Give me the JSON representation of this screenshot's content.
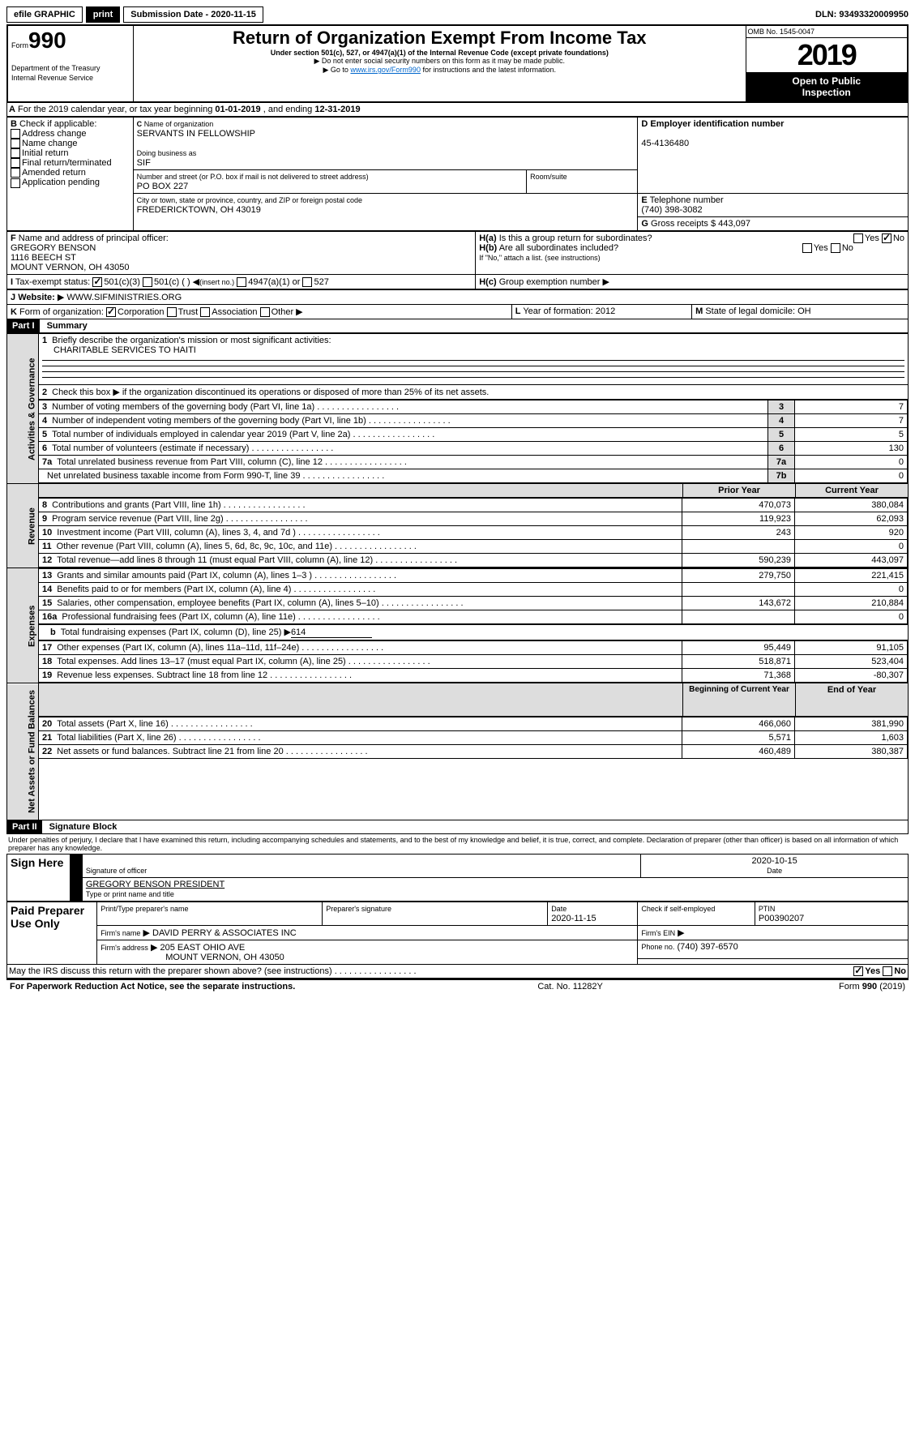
{
  "topbar": {
    "efile": "efile GRAPHIC",
    "print": "print",
    "subdate_lbl": "Submission Date - 2020-11-15",
    "dln": "DLN: 93493320009950"
  },
  "header": {
    "form": "990",
    "form_prefix": "Form",
    "title": "Return of Organization Exempt From Income Tax",
    "subtitle": "Under section 501(c), 527, or 4947(a)(1) of the Internal Revenue Code (except private foundations)",
    "note1": "Do not enter social security numbers on this form as it may be made public.",
    "note2_pre": "Go to ",
    "note2_link": "www.irs.gov/Form990",
    "note2_post": " for instructions and the latest information.",
    "dept": "Department of the Treasury",
    "irs": "Internal Revenue Service",
    "omb": "OMB No. 1545-0047",
    "year": "2019",
    "open": "Open to Public",
    "inspection": "Inspection"
  },
  "a_line": {
    "pre": "For the 2019 calendar year, or tax year beginning ",
    "begin": "01-01-2019",
    "mid": " , and ending ",
    "end": "12-31-2019"
  },
  "b": {
    "lbl": "Check if applicable:",
    "opts": [
      "Address change",
      "Name change",
      "Initial return",
      "Final return/terminated",
      "Amended return",
      "Application pending"
    ]
  },
  "c": {
    "lbl": "Name of organization",
    "name": "SERVANTS IN FELLOWSHIP",
    "dba_lbl": "Doing business as",
    "dba": "SIF",
    "addr_lbl": "Number and street (or P.O. box if mail is not delivered to street address)",
    "room_lbl": "Room/suite",
    "addr": "PO BOX 227",
    "city_lbl": "City or town, state or province, country, and ZIP or foreign postal code",
    "city": "FREDERICKTOWN, OH  43019"
  },
  "d": {
    "lbl": "Employer identification number",
    "ein": "45-4136480"
  },
  "e": {
    "lbl": "Telephone number",
    "phone": "(740) 398-3082"
  },
  "g": {
    "lbl": "Gross receipts $",
    "amt": "443,097"
  },
  "f": {
    "lbl": "Name and address of principal officer:",
    "name": "GREGORY BENSON",
    "addr1": "1116 BEECH ST",
    "addr2": "MOUNT VERNON, OH  43050"
  },
  "h": {
    "a": "Is this a group return for subordinates?",
    "b": "Are all subordinates included?",
    "c": "Group exemption number",
    "no_note": "If \"No,\" attach a list. (see instructions)",
    "yes": "Yes",
    "no": "No"
  },
  "tax_status": {
    "lbl": "Tax-exempt status:",
    "o1": "501(c)(3)",
    "o2": "501(c) (  )",
    "ins": "(insert no.)",
    "o3": "4947(a)(1) or",
    "o4": "527"
  },
  "j": {
    "lbl": "Website:",
    "val": "WWW.SIFMINISTRIES.ORG"
  },
  "k": {
    "lbl": "Form of organization:",
    "o1": "Corporation",
    "o2": "Trust",
    "o3": "Association",
    "o4": "Other"
  },
  "l": {
    "lbl": "Year of formation:",
    "val": "2012"
  },
  "m": {
    "lbl": "State of legal domicile:",
    "val": "OH"
  },
  "part1": {
    "hdr": "Part I",
    "title": "Summary"
  },
  "gov": {
    "tab": "Activities & Governance",
    "l1": "Briefly describe the organization's mission or most significant activities:",
    "mission": "CHARITABLE SERVICES TO HAITI",
    "l2": "Check this box ▶       if the organization discontinued its operations or disposed of more than 25% of its net assets.",
    "rows": [
      {
        "n": "3",
        "t": "Number of voting members of the governing body (Part VI, line 1a)",
        "c": "3",
        "v": "7"
      },
      {
        "n": "4",
        "t": "Number of independent voting members of the governing body (Part VI, line 1b)",
        "c": "4",
        "v": "7"
      },
      {
        "n": "5",
        "t": "Total number of individuals employed in calendar year 2019 (Part V, line 2a)",
        "c": "5",
        "v": "5"
      },
      {
        "n": "6",
        "t": "Total number of volunteers (estimate if necessary)",
        "c": "6",
        "v": "130"
      },
      {
        "n": "7a",
        "t": "Total unrelated business revenue from Part VIII, column (C), line 12",
        "c": "7a",
        "v": "0"
      },
      {
        "n": "",
        "t": "Net unrelated business taxable income from Form 990-T, line 39",
        "c": "7b",
        "v": "0"
      }
    ]
  },
  "rev": {
    "tab": "Revenue",
    "prior": "Prior Year",
    "current": "Current Year",
    "rows": [
      {
        "n": "8",
        "t": "Contributions and grants (Part VIII, line 1h)",
        "p": "470,073",
        "c": "380,084"
      },
      {
        "n": "9",
        "t": "Program service revenue (Part VIII, line 2g)",
        "p": "119,923",
        "c": "62,093"
      },
      {
        "n": "10",
        "t": "Investment income (Part VIII, column (A), lines 3, 4, and 7d )",
        "p": "243",
        "c": "920"
      },
      {
        "n": "11",
        "t": "Other revenue (Part VIII, column (A), lines 5, 6d, 8c, 9c, 10c, and 11e)",
        "p": "",
        "c": "0"
      },
      {
        "n": "12",
        "t": "Total revenue—add lines 8 through 11 (must equal Part VIII, column (A), line 12)",
        "p": "590,239",
        "c": "443,097"
      }
    ]
  },
  "exp": {
    "tab": "Expenses",
    "rows": [
      {
        "n": "13",
        "t": "Grants and similar amounts paid (Part IX, column (A), lines 1–3 )",
        "p": "279,750",
        "c": "221,415"
      },
      {
        "n": "14",
        "t": "Benefits paid to or for members (Part IX, column (A), line 4)",
        "p": "",
        "c": "0"
      },
      {
        "n": "15",
        "t": "Salaries, other compensation, employee benefits (Part IX, column (A), lines 5–10)",
        "p": "143,672",
        "c": "210,884"
      },
      {
        "n": "16a",
        "t": "Professional fundraising fees (Part IX, column (A), line 11e)",
        "p": "",
        "c": "0"
      }
    ],
    "b": "Total fundraising expenses (Part IX, column (D), line 25) ▶",
    "b_val": "614",
    "rows2": [
      {
        "n": "17",
        "t": "Other expenses (Part IX, column (A), lines 11a–11d, 11f–24e)",
        "p": "95,449",
        "c": "91,105"
      },
      {
        "n": "18",
        "t": "Total expenses. Add lines 13–17 (must equal Part IX, column (A), line 25)",
        "p": "518,871",
        "c": "523,404"
      },
      {
        "n": "19",
        "t": "Revenue less expenses. Subtract line 18 from line 12",
        "p": "71,368",
        "c": "-80,307"
      }
    ]
  },
  "net": {
    "tab": "Net Assets or Fund Balances",
    "begin": "Beginning of Current Year",
    "end": "End of Year",
    "rows": [
      {
        "n": "20",
        "t": "Total assets (Part X, line 16)",
        "p": "466,060",
        "c": "381,990"
      },
      {
        "n": "21",
        "t": "Total liabilities (Part X, line 26)",
        "p": "5,571",
        "c": "1,603"
      },
      {
        "n": "22",
        "t": "Net assets or fund balances. Subtract line 21 from line 20",
        "p": "460,489",
        "c": "380,387"
      }
    ]
  },
  "part2": {
    "hdr": "Part II",
    "title": "Signature Block",
    "decl": "Under penalties of perjury, I declare that I have examined this return, including accompanying schedules and statements, and to the best of my knowledge and belief, it is true, correct, and complete. Declaration of preparer (other than officer) is based on all information of which preparer has any knowledge."
  },
  "sign": {
    "here": "Sign Here",
    "sig_lbl": "Signature of officer",
    "date_lbl": "Date",
    "date": "2020-10-15",
    "name": "GREGORY BENSON  PRESIDENT",
    "name_lbl": "Type or print name and title"
  },
  "paid": {
    "lbl": "Paid Preparer Use Only",
    "c1": "Print/Type preparer's name",
    "c2": "Preparer's signature",
    "c3": "Date",
    "c3v": "2020-11-15",
    "c4": "Check       if self-employed",
    "c5": "PTIN",
    "ptin": "P00390207",
    "firm_lbl": "Firm's name",
    "firm": "DAVID PERRY & ASSOCIATES INC",
    "ein_lbl": "Firm's EIN",
    "addr_lbl": "Firm's address",
    "addr": "205 EAST OHIO AVE",
    "addr2": "MOUNT VERNON, OH  43050",
    "phone_lbl": "Phone no.",
    "phone": "(740) 397-6570"
  },
  "discuss": "May the IRS discuss this return with the preparer shown above? (see instructions)",
  "footer": {
    "pra": "For Paperwork Reduction Act Notice, see the separate instructions.",
    "cat": "Cat. No. 11282Y",
    "form": "Form 990 (2019)"
  }
}
